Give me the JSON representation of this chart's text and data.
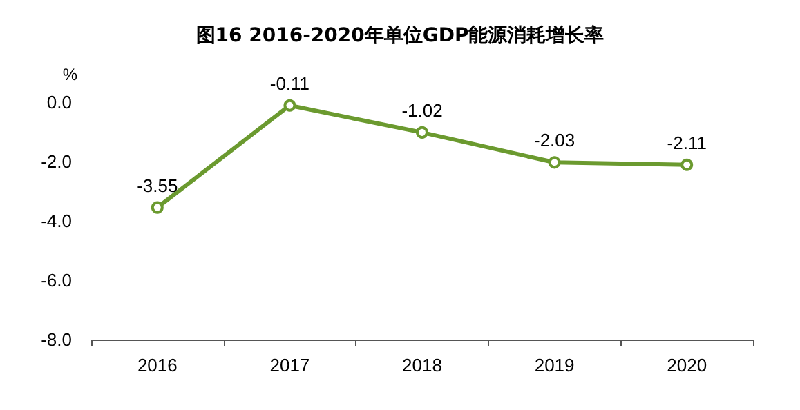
{
  "chart_data": {
    "type": "line",
    "title": "图16 2016-2020年单位GDP能源消耗增长率",
    "ylabel": "%",
    "categories": [
      "2016",
      "2017",
      "2018",
      "2019",
      "2020"
    ],
    "series": [
      {
        "color": "#6b9a2f",
        "values": [
          -3.55,
          -0.11,
          -1.02,
          -2.03,
          -2.11
        ]
      }
    ],
    "ylim": [
      -8,
      0
    ],
    "yticks": [
      {
        "value": -8,
        "label": "-8.0"
      },
      {
        "value": -6,
        "label": "-6.0"
      },
      {
        "value": -4,
        "label": "-4.0"
      },
      {
        "value": -2,
        "label": "-2.0"
      },
      {
        "value": 0,
        "label": "0.0"
      }
    ],
    "grid": false,
    "marker": "circle",
    "line_style": "solid",
    "data_labels": true
  }
}
